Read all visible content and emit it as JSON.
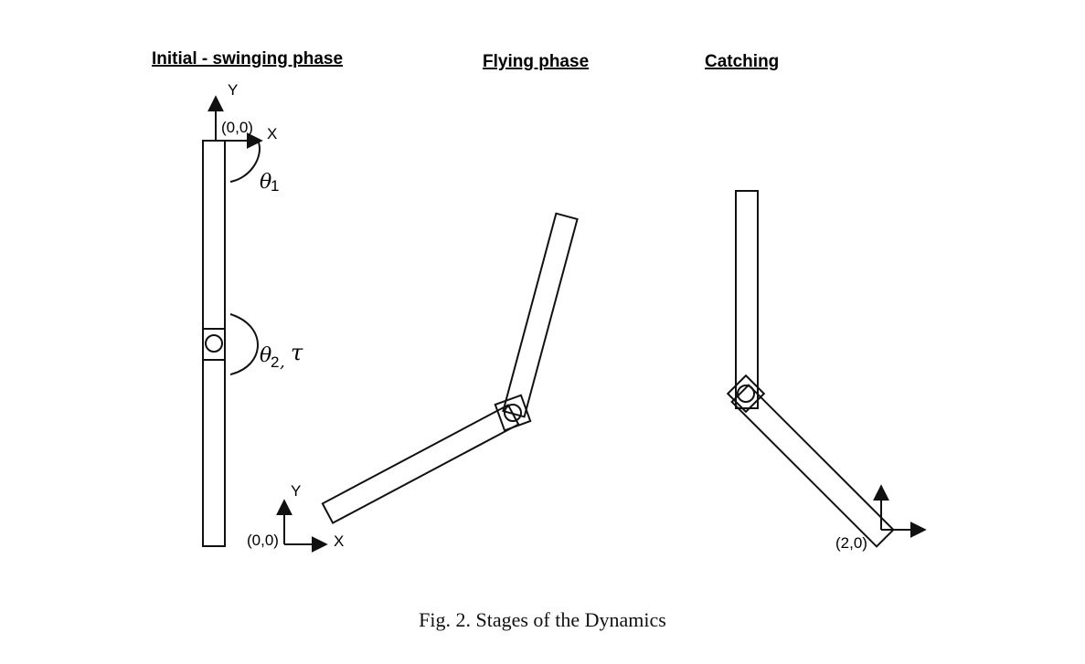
{
  "figure": {
    "caption": "Fig. 2.  Stages of the Dynamics",
    "panels": [
      {
        "title": "Initial - swinging phase",
        "axis_x": "X",
        "axis_y": "Y",
        "origin_label": "(0,0)",
        "theta1": "θ",
        "theta1_sub": "1",
        "theta2": "θ",
        "theta2_sub": "2",
        "comma": ",",
        "torque": "τ"
      },
      {
        "title": "Flying phase",
        "axis_x": "X",
        "axis_y": "Y",
        "origin_label": "(0,0)"
      },
      {
        "title": "Catching",
        "origin_label": "(2,0)"
      }
    ]
  }
}
